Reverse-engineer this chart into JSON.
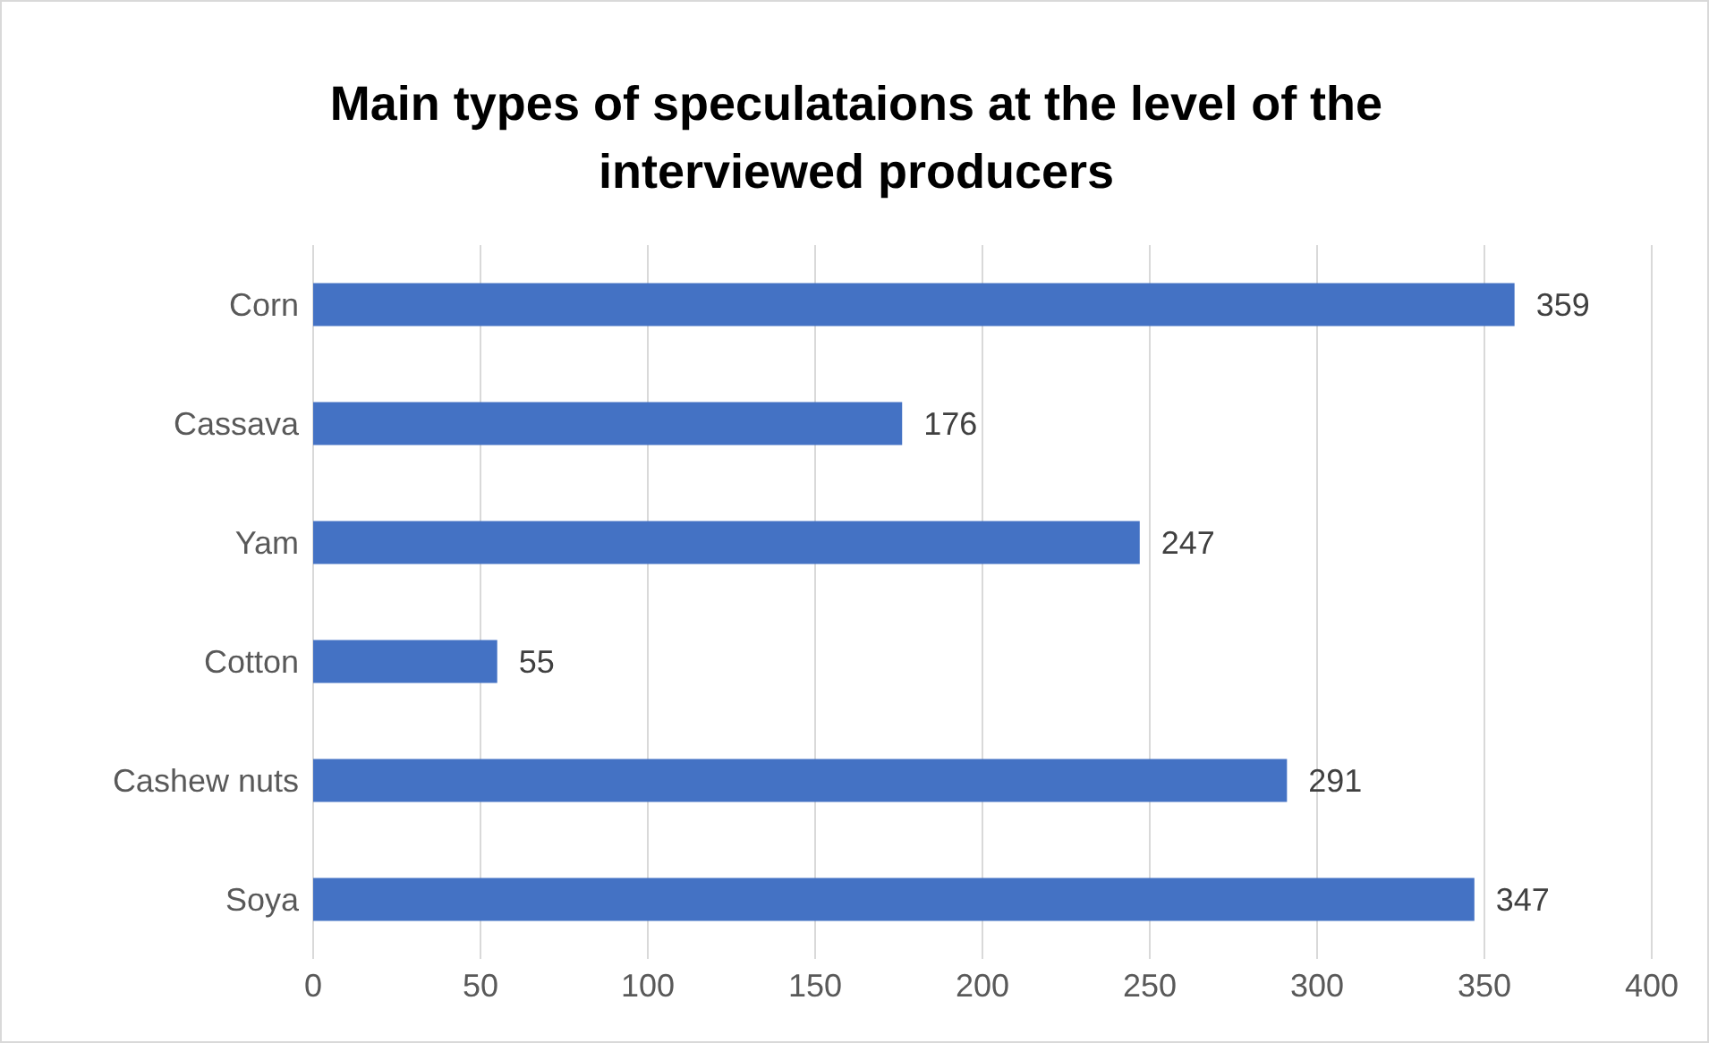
{
  "chart_data": {
    "type": "bar",
    "orientation": "horizontal",
    "title": "Main types of speculataions at the level of the interviewed producers",
    "categories": [
      "Corn",
      "Cassava",
      "Yam",
      "Cotton",
      "Cashew nuts",
      "Soya"
    ],
    "values": [
      359,
      176,
      247,
      55,
      291,
      347
    ],
    "color": "#4472c4",
    "xlim": [
      0,
      400
    ],
    "xticks": [
      0,
      50,
      100,
      150,
      200,
      250,
      300,
      350,
      400
    ],
    "grid": "x",
    "data_labels": true
  }
}
